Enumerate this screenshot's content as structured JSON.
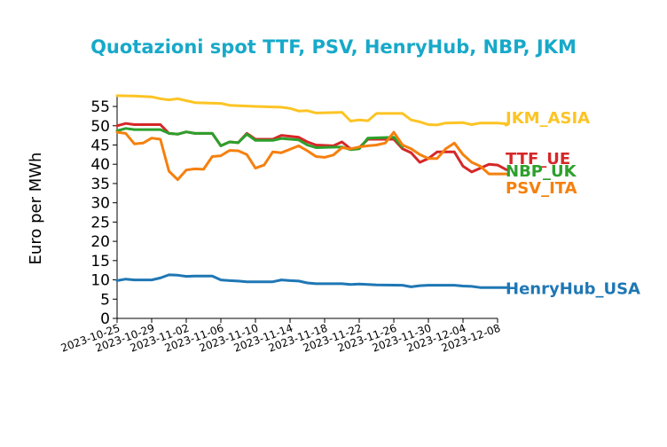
{
  "chart_data": {
    "type": "line",
    "title": "Quotazioni spot TTF, PSV, HenryHub, NBP, JKM",
    "title_color": "#17a9c9",
    "xlabel": "",
    "ylabel": "Euro per MWh",
    "ylim": [
      0,
      58
    ],
    "yticks": [
      0,
      5,
      10,
      15,
      20,
      25,
      30,
      35,
      40,
      45,
      50,
      55
    ],
    "xlim": [
      "2023-10-25",
      "2023-12-08"
    ],
    "xticks": [
      "2023-10-25",
      "2023-10-29",
      "2023-11-02",
      "2023-11-06",
      "2023-11-10",
      "2023-11-14",
      "2023-11-18",
      "2023-11-22",
      "2023-11-26",
      "2023-11-30",
      "2023-12-04",
      "2023-12-08"
    ],
    "grid": false,
    "legend": "end-of-line labels",
    "series": [
      {
        "name": "JKM_ASIA",
        "color": "#fcc424",
        "points": [
          [
            "2023-10-25",
            57.8
          ],
          [
            "2023-10-27",
            57.7
          ],
          [
            "2023-10-29",
            57.5
          ],
          [
            "2023-10-30",
            57.0
          ],
          [
            "2023-10-31",
            56.7
          ],
          [
            "2023-11-01",
            57.0
          ],
          [
            "2023-11-02",
            56.5
          ],
          [
            "2023-11-03",
            56.0
          ],
          [
            "2023-11-06",
            55.8
          ],
          [
            "2023-11-07",
            55.3
          ],
          [
            "2023-11-10",
            55.0
          ],
          [
            "2023-11-13",
            54.8
          ],
          [
            "2023-11-14",
            54.5
          ],
          [
            "2023-11-15",
            53.8
          ],
          [
            "2023-11-16",
            53.9
          ],
          [
            "2023-11-17",
            53.3
          ],
          [
            "2023-11-20",
            53.5
          ],
          [
            "2023-11-21",
            51.2
          ],
          [
            "2023-11-22",
            51.5
          ],
          [
            "2023-11-23",
            51.3
          ],
          [
            "2023-11-24",
            53.2
          ],
          [
            "2023-11-27",
            53.2
          ],
          [
            "2023-11-28",
            51.5
          ],
          [
            "2023-11-29",
            51.0
          ],
          [
            "2023-11-30",
            50.3
          ],
          [
            "2023-12-01",
            50.2
          ],
          [
            "2023-12-02",
            50.7
          ],
          [
            "2023-12-04",
            50.8
          ],
          [
            "2023-12-05",
            50.3
          ],
          [
            "2023-12-06",
            50.7
          ],
          [
            "2023-12-08",
            50.7
          ],
          [
            "2023-12-09",
            50.5
          ]
        ]
      },
      {
        "name": "TTF_UE",
        "color": "#d62728",
        "points": [
          [
            "2023-10-25",
            50.0
          ],
          [
            "2023-10-26",
            50.6
          ],
          [
            "2023-10-27",
            50.3
          ],
          [
            "2023-10-30",
            50.3
          ],
          [
            "2023-10-31",
            48.0
          ],
          [
            "2023-11-01",
            47.8
          ],
          [
            "2023-11-02",
            48.4
          ],
          [
            "2023-11-03",
            48.0
          ],
          [
            "2023-11-05",
            48.0
          ],
          [
            "2023-11-06",
            44.8
          ],
          [
            "2023-11-07",
            45.8
          ],
          [
            "2023-11-08",
            45.6
          ],
          [
            "2023-11-09",
            48.0
          ],
          [
            "2023-11-10",
            46.5
          ],
          [
            "2023-11-12",
            46.5
          ],
          [
            "2023-11-13",
            47.5
          ],
          [
            "2023-11-15",
            47.0
          ],
          [
            "2023-11-16",
            45.8
          ],
          [
            "2023-11-17",
            45.0
          ],
          [
            "2023-11-19",
            44.8
          ],
          [
            "2023-11-20",
            45.8
          ],
          [
            "2023-11-21",
            44.0
          ],
          [
            "2023-11-22",
            44.3
          ],
          [
            "2023-11-23",
            46.5
          ],
          [
            "2023-11-26",
            46.5
          ],
          [
            "2023-11-27",
            44.0
          ],
          [
            "2023-11-28",
            43.0
          ],
          [
            "2023-11-29",
            40.5
          ],
          [
            "2023-11-30",
            41.5
          ],
          [
            "2023-12-01",
            43.2
          ],
          [
            "2023-12-03",
            43.2
          ],
          [
            "2023-12-04",
            39.5
          ],
          [
            "2023-12-05",
            38.0
          ],
          [
            "2023-12-06",
            39.0
          ],
          [
            "2023-12-07",
            40.0
          ],
          [
            "2023-12-08",
            39.8
          ],
          [
            "2023-12-09",
            38.6
          ]
        ]
      },
      {
        "name": "NBP_UK",
        "color": "#2ca02c",
        "points": [
          [
            "2023-10-25",
            48.7
          ],
          [
            "2023-10-26",
            49.3
          ],
          [
            "2023-10-27",
            49.0
          ],
          [
            "2023-10-30",
            49.0
          ],
          [
            "2023-10-31",
            48.0
          ],
          [
            "2023-11-01",
            47.8
          ],
          [
            "2023-11-02",
            48.4
          ],
          [
            "2023-11-03",
            48.0
          ],
          [
            "2023-11-05",
            48.0
          ],
          [
            "2023-11-06",
            44.8
          ],
          [
            "2023-11-07",
            45.8
          ],
          [
            "2023-11-08",
            45.6
          ],
          [
            "2023-11-09",
            47.8
          ],
          [
            "2023-11-10",
            46.2
          ],
          [
            "2023-11-12",
            46.2
          ],
          [
            "2023-11-13",
            46.7
          ],
          [
            "2023-11-15",
            46.3
          ],
          [
            "2023-11-16",
            45.0
          ],
          [
            "2023-11-17",
            44.3
          ],
          [
            "2023-11-20",
            44.5
          ],
          [
            "2023-11-21",
            43.8
          ],
          [
            "2023-11-22",
            44.0
          ],
          [
            "2023-11-23",
            46.8
          ],
          [
            "2023-11-26",
            47.0
          ],
          [
            "2023-11-27",
            44.5
          ]
        ]
      },
      {
        "name": "PSV_ITA",
        "color": "#f5800e",
        "points": [
          [
            "2023-10-25",
            48.3
          ],
          [
            "2023-10-26",
            48.0
          ],
          [
            "2023-10-27",
            45.3
          ],
          [
            "2023-10-28",
            45.5
          ],
          [
            "2023-10-29",
            46.8
          ],
          [
            "2023-10-30",
            46.5
          ],
          [
            "2023-10-31",
            38.2
          ],
          [
            "2023-11-01",
            36.0
          ],
          [
            "2023-11-02",
            38.5
          ],
          [
            "2023-11-03",
            38.8
          ],
          [
            "2023-11-04",
            38.7
          ],
          [
            "2023-11-05",
            42.0
          ],
          [
            "2023-11-06",
            42.2
          ],
          [
            "2023-11-07",
            43.6
          ],
          [
            "2023-11-08",
            43.5
          ],
          [
            "2023-11-09",
            42.5
          ],
          [
            "2023-11-10",
            39.0
          ],
          [
            "2023-11-11",
            39.8
          ],
          [
            "2023-11-12",
            43.2
          ],
          [
            "2023-11-13",
            43.0
          ],
          [
            "2023-11-15",
            44.8
          ],
          [
            "2023-11-16",
            43.5
          ],
          [
            "2023-11-17",
            42.0
          ],
          [
            "2023-11-18",
            41.8
          ],
          [
            "2023-11-19",
            42.4
          ],
          [
            "2023-11-20",
            44.3
          ],
          [
            "2023-11-21",
            44.0
          ],
          [
            "2023-11-22",
            44.5
          ],
          [
            "2023-11-23",
            44.8
          ],
          [
            "2023-11-24",
            45.0
          ],
          [
            "2023-11-25",
            45.5
          ],
          [
            "2023-11-26",
            48.3
          ],
          [
            "2023-11-27",
            45.0
          ],
          [
            "2023-11-28",
            44.0
          ],
          [
            "2023-11-29",
            42.5
          ],
          [
            "2023-11-30",
            41.5
          ],
          [
            "2023-12-01",
            41.5
          ],
          [
            "2023-12-02",
            44.0
          ],
          [
            "2023-12-03",
            45.5
          ],
          [
            "2023-12-04",
            42.5
          ],
          [
            "2023-12-05",
            40.5
          ],
          [
            "2023-12-06",
            39.5
          ],
          [
            "2023-12-07",
            37.5
          ],
          [
            "2023-12-09",
            37.5
          ]
        ]
      },
      {
        "name": "HenryHub_USA",
        "color": "#1f77b4",
        "points": [
          [
            "2023-10-25",
            9.8
          ],
          [
            "2023-10-26",
            10.2
          ],
          [
            "2023-10-27",
            10.0
          ],
          [
            "2023-10-29",
            10.0
          ],
          [
            "2023-10-30",
            10.5
          ],
          [
            "2023-10-31",
            11.3
          ],
          [
            "2023-11-01",
            11.2
          ],
          [
            "2023-11-02",
            10.9
          ],
          [
            "2023-11-03",
            11.0
          ],
          [
            "2023-11-05",
            11.0
          ],
          [
            "2023-11-06",
            10.0
          ],
          [
            "2023-11-07",
            9.8
          ],
          [
            "2023-11-08",
            9.7
          ],
          [
            "2023-11-09",
            9.5
          ],
          [
            "2023-11-12",
            9.5
          ],
          [
            "2023-11-13",
            10.0
          ],
          [
            "2023-11-14",
            9.8
          ],
          [
            "2023-11-15",
            9.7
          ],
          [
            "2023-11-16",
            9.2
          ],
          [
            "2023-11-17",
            9.0
          ],
          [
            "2023-11-20",
            9.0
          ],
          [
            "2023-11-21",
            8.8
          ],
          [
            "2023-11-22",
            8.9
          ],
          [
            "2023-11-24",
            8.7
          ],
          [
            "2023-11-27",
            8.6
          ],
          [
            "2023-11-28",
            8.2
          ],
          [
            "2023-11-29",
            8.5
          ],
          [
            "2023-11-30",
            8.6
          ],
          [
            "2023-12-03",
            8.6
          ],
          [
            "2023-12-04",
            8.4
          ],
          [
            "2023-12-05",
            8.3
          ],
          [
            "2023-12-06",
            8.0
          ],
          [
            "2023-12-09",
            8.0
          ]
        ]
      }
    ],
    "end_labels": [
      {
        "text": "JKM_ASIA",
        "color": "#fcc424",
        "y": 52.0
      },
      {
        "text": "TTF_UE",
        "color": "#d62728",
        "y": 41.4
      },
      {
        "text": "NBP_UK",
        "color": "#2ca02c",
        "y": 38.2
      },
      {
        "text": "PSV_ITA",
        "color": "#f5800e",
        "y": 33.8
      },
      {
        "text": "HenryHub_USA",
        "color": "#1f77b4",
        "y": 7.7
      }
    ]
  }
}
